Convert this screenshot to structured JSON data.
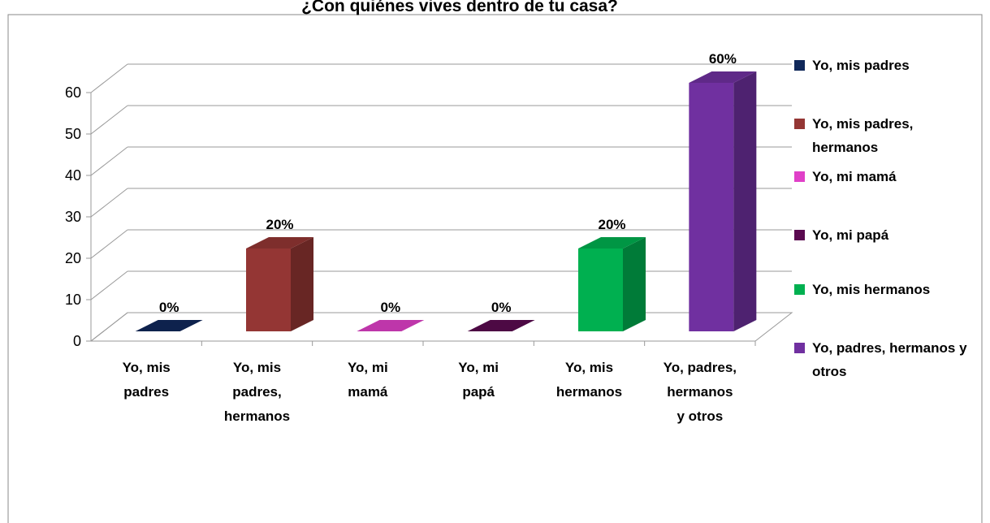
{
  "chart_data": {
    "type": "bar3d",
    "title": "¿Con quiénes vives dentro de tu casa?",
    "categories": [
      "Yo, mis padres",
      "Yo, mis padres, hermanos",
      "Yo, mi mamá",
      "Yo, mi papá",
      "Yo, mis hermanos",
      "Yo, padres, hermanos y otros"
    ],
    "values": [
      0,
      20,
      0,
      0,
      20,
      60
    ],
    "value_labels": [
      "0%",
      "20%",
      "0%",
      "0%",
      "20%",
      "60%"
    ],
    "colors": [
      "#10285a",
      "#943634",
      "#e040c8",
      "#5a0a50",
      "#00b050",
      "#7030a0"
    ],
    "ylim": [
      0,
      60
    ],
    "yticks": [
      0,
      10,
      20,
      30,
      40,
      50,
      60
    ],
    "grid": true,
    "legend": "right"
  }
}
